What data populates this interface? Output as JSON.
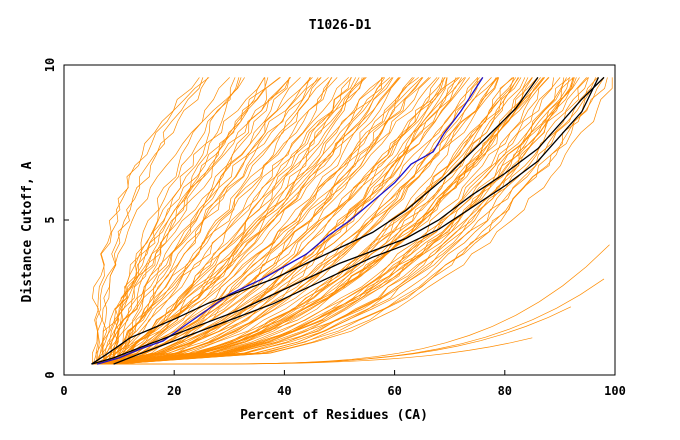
{
  "chart_data": {
    "type": "line",
    "title": "T1026-D1",
    "xlabel": "Percent of Residues (CA)",
    "ylabel": "Distance Cutoff, A",
    "xlim": [
      0,
      100
    ],
    "ylim": [
      0,
      10
    ],
    "x_ticks": [
      "0",
      "20",
      "40",
      "60",
      "80",
      "100"
    ],
    "y_ticks": [
      "0",
      "5",
      "10"
    ],
    "grid": false,
    "legend": "none",
    "colors": {
      "bundle": "#ff8c00",
      "highlight_blue": "#1a10cc",
      "highlight_black": "#000000",
      "frame": "#000000"
    },
    "bundle_models": 120,
    "series": [
      {
        "color": "#1a10cc",
        "points": [
          [
            6,
            0.35
          ],
          [
            10,
            0.55
          ],
          [
            14,
            0.85
          ],
          [
            18,
            1.1
          ],
          [
            22,
            1.6
          ],
          [
            26,
            2.1
          ],
          [
            30,
            2.6
          ],
          [
            36,
            3.1
          ],
          [
            40,
            3.5
          ],
          [
            44,
            3.9
          ],
          [
            48,
            4.5
          ],
          [
            52,
            5.0
          ],
          [
            56,
            5.6
          ],
          [
            60,
            6.2
          ],
          [
            63,
            6.8
          ],
          [
            67,
            7.2
          ],
          [
            69,
            7.8
          ],
          [
            72,
            8.5
          ],
          [
            76,
            9.6
          ]
        ]
      },
      {
        "color": "#000000",
        "points": [
          [
            5,
            0.35
          ],
          [
            8,
            0.7
          ],
          [
            12,
            1.2
          ],
          [
            16,
            1.5
          ],
          [
            20,
            1.8
          ],
          [
            26,
            2.3
          ],
          [
            32,
            2.7
          ],
          [
            38,
            3.1
          ],
          [
            44,
            3.6
          ],
          [
            50,
            4.1
          ],
          [
            56,
            4.6
          ],
          [
            62,
            5.3
          ],
          [
            66,
            5.9
          ],
          [
            70,
            6.5
          ],
          [
            74,
            7.2
          ],
          [
            78,
            7.9
          ],
          [
            82,
            8.6
          ],
          [
            86,
            9.6
          ]
        ]
      },
      {
        "color": "#000000",
        "points": [
          [
            5,
            0.35
          ],
          [
            9,
            0.55
          ],
          [
            14,
            0.9
          ],
          [
            20,
            1.3
          ],
          [
            26,
            1.7
          ],
          [
            32,
            2.1
          ],
          [
            38,
            2.6
          ],
          [
            44,
            3.1
          ],
          [
            50,
            3.6
          ],
          [
            56,
            4.0
          ],
          [
            62,
            4.4
          ],
          [
            68,
            5.0
          ],
          [
            74,
            5.8
          ],
          [
            80,
            6.5
          ],
          [
            86,
            7.3
          ],
          [
            90,
            8.1
          ],
          [
            94,
            8.9
          ],
          [
            98,
            9.6
          ]
        ]
      },
      {
        "color": "#000000",
        "points": [
          [
            9,
            0.35
          ],
          [
            14,
            0.7
          ],
          [
            20,
            1.1
          ],
          [
            26,
            1.5
          ],
          [
            32,
            1.9
          ],
          [
            38,
            2.3
          ],
          [
            44,
            2.8
          ],
          [
            50,
            3.3
          ],
          [
            56,
            3.8
          ],
          [
            62,
            4.2
          ],
          [
            68,
            4.7
          ],
          [
            74,
            5.4
          ],
          [
            80,
            6.1
          ],
          [
            86,
            6.9
          ],
          [
            90,
            7.7
          ],
          [
            94,
            8.5
          ],
          [
            97,
            9.6
          ]
        ]
      }
    ]
  }
}
